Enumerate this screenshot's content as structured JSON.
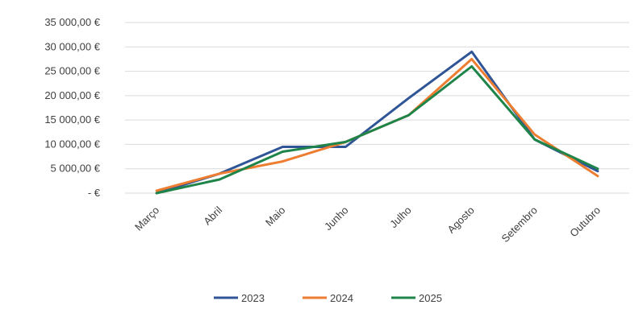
{
  "chart_data": {
    "type": "line",
    "categories": [
      "Março",
      "Abril",
      "Maio",
      "Junho",
      "Julho",
      "Agosto",
      "Setembro",
      "Outubro"
    ],
    "series": [
      {
        "name": "2023",
        "color": "#2f5597",
        "values": [
          0,
          4000,
          9500,
          9500,
          19500,
          29000,
          11000,
          4500
        ]
      },
      {
        "name": "2024",
        "color": "#ed7d31",
        "values": [
          500,
          4000,
          6500,
          10500,
          16000,
          27500,
          12000,
          3500
        ]
      },
      {
        "name": "2025",
        "color": "#1e8449",
        "values": [
          0,
          2800,
          8500,
          10500,
          16000,
          26000,
          11000,
          5000
        ]
      }
    ],
    "y_ticks": [
      "-   €",
      "5 000,00 €",
      "10 000,00 €",
      "15 000,00 €",
      "20 000,00 €",
      "25 000,00 €",
      "30 000,00 €",
      "35 000,00 €"
    ],
    "ylim": [
      0,
      35000
    ],
    "grid": true,
    "legend_position": "bottom"
  }
}
